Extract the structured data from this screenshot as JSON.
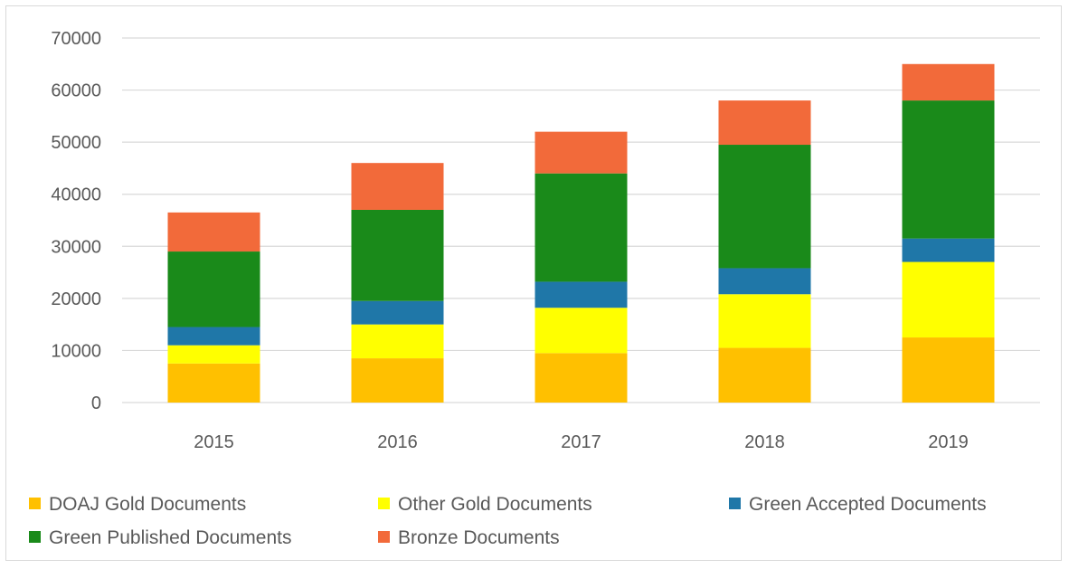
{
  "chart_data": {
    "type": "bar",
    "stacked": true,
    "title": "",
    "xlabel": "",
    "ylabel": "",
    "categories": [
      "2015",
      "2016",
      "2017",
      "2018",
      "2019"
    ],
    "ylim": [
      0,
      70000
    ],
    "yticks": [
      0,
      10000,
      20000,
      30000,
      40000,
      50000,
      60000,
      70000
    ],
    "grid": true,
    "legend_position": "bottom",
    "series": [
      {
        "name": "DOAJ Gold Documents",
        "color": "#FFC000",
        "values": [
          7500,
          8500,
          9500,
          10500,
          12500
        ]
      },
      {
        "name": "Other Gold Documents",
        "color": "#FFFF00",
        "values": [
          3500,
          6500,
          8700,
          10300,
          14500
        ]
      },
      {
        "name": "Green Accepted Documents",
        "color": "#1F77A8",
        "values": [
          3500,
          4500,
          5000,
          5000,
          4500
        ]
      },
      {
        "name": "Green Published Documents",
        "color": "#1A8A1A",
        "values": [
          14500,
          17500,
          20800,
          23700,
          26500
        ]
      },
      {
        "name": "Bronze Documents",
        "color": "#F26A3A",
        "values": [
          7500,
          9000,
          8000,
          8500,
          7000
        ]
      }
    ]
  }
}
